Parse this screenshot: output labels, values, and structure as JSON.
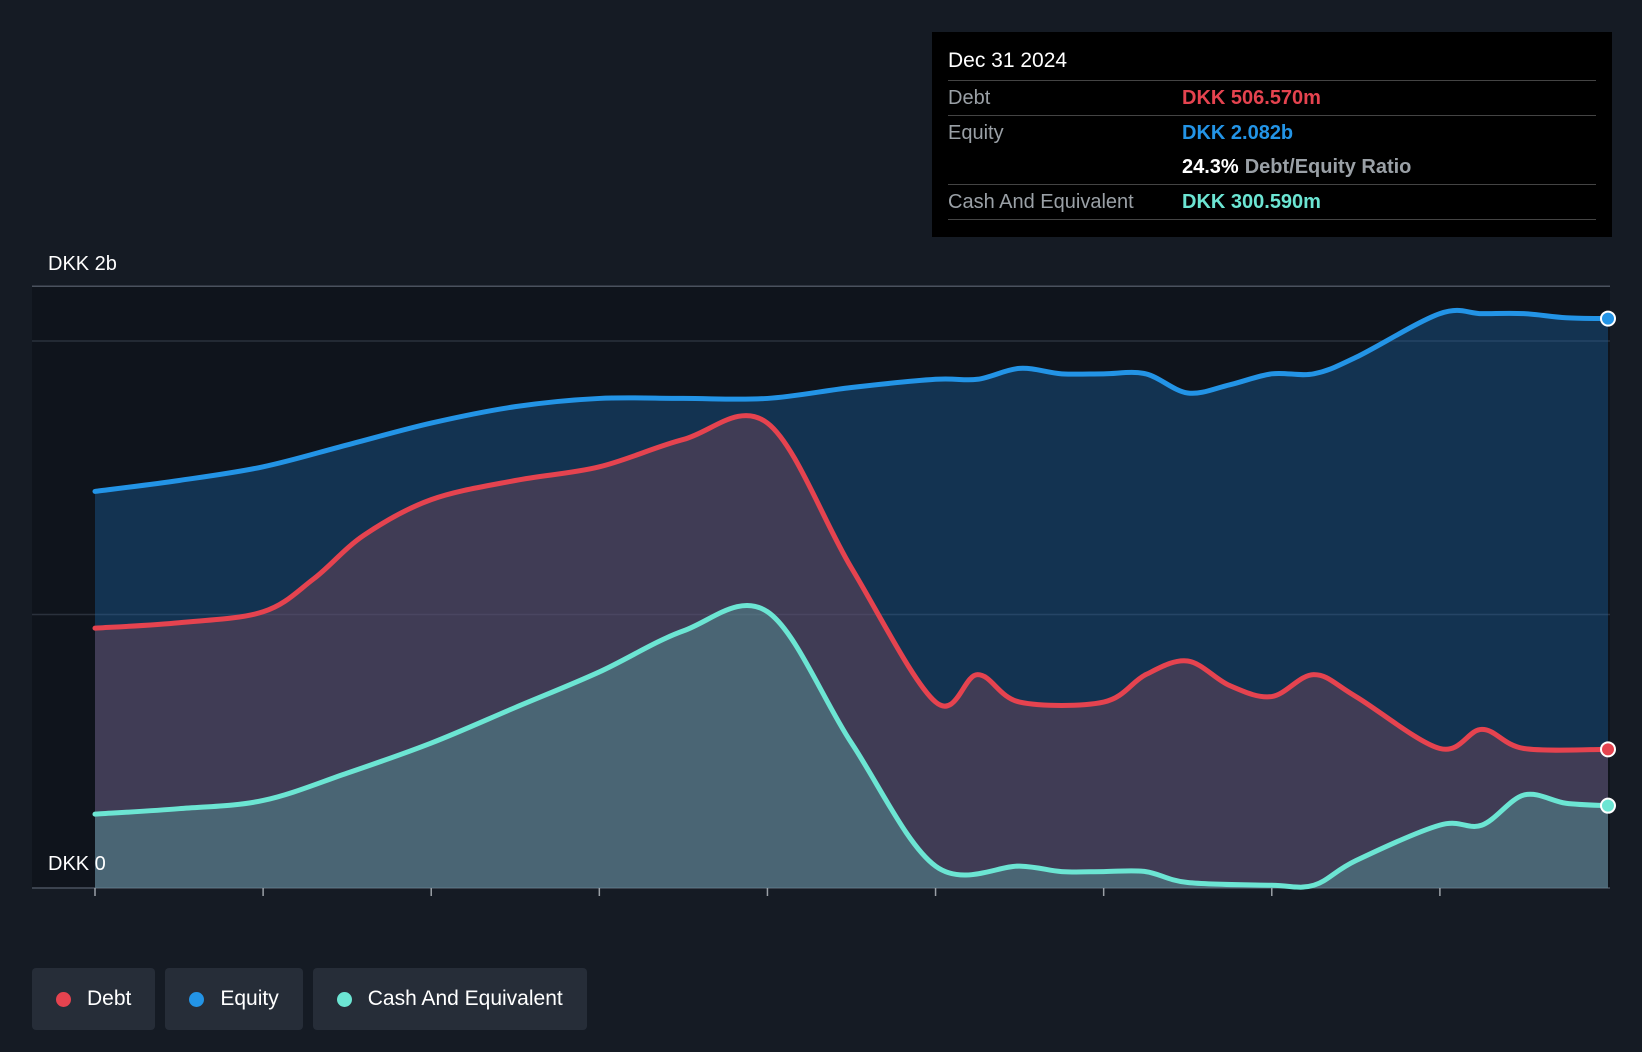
{
  "tooltip": {
    "date": "Dec 31 2024",
    "debt_label": "Debt",
    "debt_value": "DKK 506.570m",
    "equity_label": "Equity",
    "equity_value": "DKK 2.082b",
    "ratio_value": "24.3%",
    "ratio_label": "Debt/Equity Ratio",
    "cash_label": "Cash And Equivalent",
    "cash_value": "DKK 300.590m"
  },
  "legend": [
    {
      "label": "Debt",
      "color": "#e5434f"
    },
    {
      "label": "Equity",
      "color": "#2394e6"
    },
    {
      "label": "Cash And Equivalent",
      "color": "#6ce5d3"
    }
  ],
  "chart_data": {
    "type": "area",
    "y_top_label": "DKK 2b",
    "y_bottom_label": "DKK 0",
    "ylim": [
      0,
      2.2
    ],
    "xlim": [
      2016.0,
      2025.0
    ],
    "x_ticks": [
      "2016",
      "2017",
      "2018",
      "2019",
      "2020",
      "2021",
      "2022",
      "2023",
      "2024"
    ],
    "x_tick_values": [
      2016,
      2017,
      2018,
      2019,
      2020,
      2021,
      2022,
      2023,
      2024
    ],
    "grid": true,
    "legend_position": "bottom-left",
    "highlight_x": 2025.0,
    "series": [
      {
        "name": "Equity",
        "color": "#2394e6",
        "x": [
          2016.0,
          2016.5,
          2017.0,
          2017.5,
          2018.0,
          2018.5,
          2019.0,
          2019.5,
          2020.0,
          2020.5,
          2021.0,
          2021.25,
          2021.5,
          2021.75,
          2022.0,
          2022.25,
          2022.5,
          2022.75,
          2023.0,
          2023.25,
          2023.5,
          2024.0,
          2024.25,
          2024.5,
          2024.75,
          2025.0
        ],
        "values": [
          1.45,
          1.49,
          1.54,
          1.62,
          1.7,
          1.76,
          1.79,
          1.79,
          1.79,
          1.83,
          1.86,
          1.86,
          1.9,
          1.88,
          1.88,
          1.88,
          1.81,
          1.84,
          1.88,
          1.88,
          1.94,
          2.1,
          2.1,
          2.1,
          2.085,
          2.082
        ]
      },
      {
        "name": "Debt",
        "color": "#e5434f",
        "x": [
          2016.0,
          2016.5,
          2017.0,
          2017.3,
          2017.6,
          2018.0,
          2018.5,
          2019.0,
          2019.5,
          2020.0,
          2020.5,
          2021.0,
          2021.25,
          2021.5,
          2022.0,
          2022.25,
          2022.5,
          2022.75,
          2023.0,
          2023.25,
          2023.5,
          2024.0,
          2024.25,
          2024.5,
          2025.0
        ],
        "values": [
          0.95,
          0.97,
          1.01,
          1.13,
          1.29,
          1.42,
          1.49,
          1.54,
          1.64,
          1.7,
          1.17,
          0.68,
          0.78,
          0.68,
          0.68,
          0.78,
          0.83,
          0.74,
          0.7,
          0.78,
          0.7,
          0.51,
          0.58,
          0.51,
          0.507
        ]
      },
      {
        "name": "Cash And Equivalent",
        "color": "#6ce5d3",
        "x": [
          2016.0,
          2016.5,
          2017.0,
          2017.5,
          2018.0,
          2018.5,
          2019.0,
          2019.5,
          2020.0,
          2020.5,
          2021.0,
          2021.5,
          2021.75,
          2022.0,
          2022.25,
          2022.5,
          2023.0,
          2023.25,
          2023.5,
          2024.0,
          2024.25,
          2024.5,
          2024.75,
          2025.0
        ],
        "values": [
          0.27,
          0.29,
          0.32,
          0.42,
          0.53,
          0.66,
          0.79,
          0.94,
          1.01,
          0.53,
          0.08,
          0.08,
          0.06,
          0.06,
          0.06,
          0.02,
          0.01,
          0.01,
          0.1,
          0.23,
          0.23,
          0.34,
          0.31,
          0.301
        ]
      }
    ]
  }
}
